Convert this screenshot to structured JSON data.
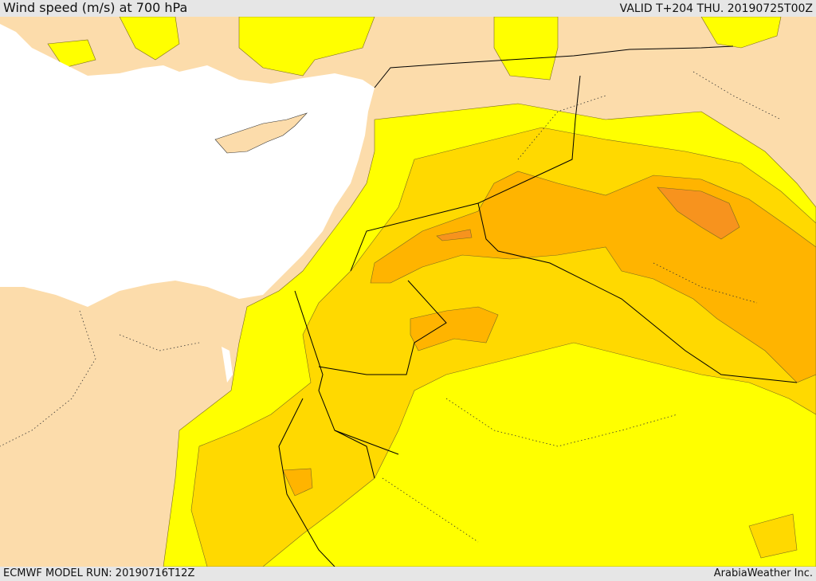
{
  "header": {
    "title": "Wind speed (m/s) at 700 hPa",
    "valid": "VALID T+204 THU. 20190725T00Z"
  },
  "footer": {
    "model_run": "ECMWF MODEL RUN: 20190716T12Z",
    "credit": "ArabiaWeather Inc."
  },
  "map": {
    "colors": {
      "land": "#fcdcab",
      "sea": "#ffffff",
      "level_1": "#ffff00",
      "level_2": "#ffd900",
      "level_3": "#ffb400",
      "level_4": "#f7931e",
      "border": "#000000"
    }
  }
}
